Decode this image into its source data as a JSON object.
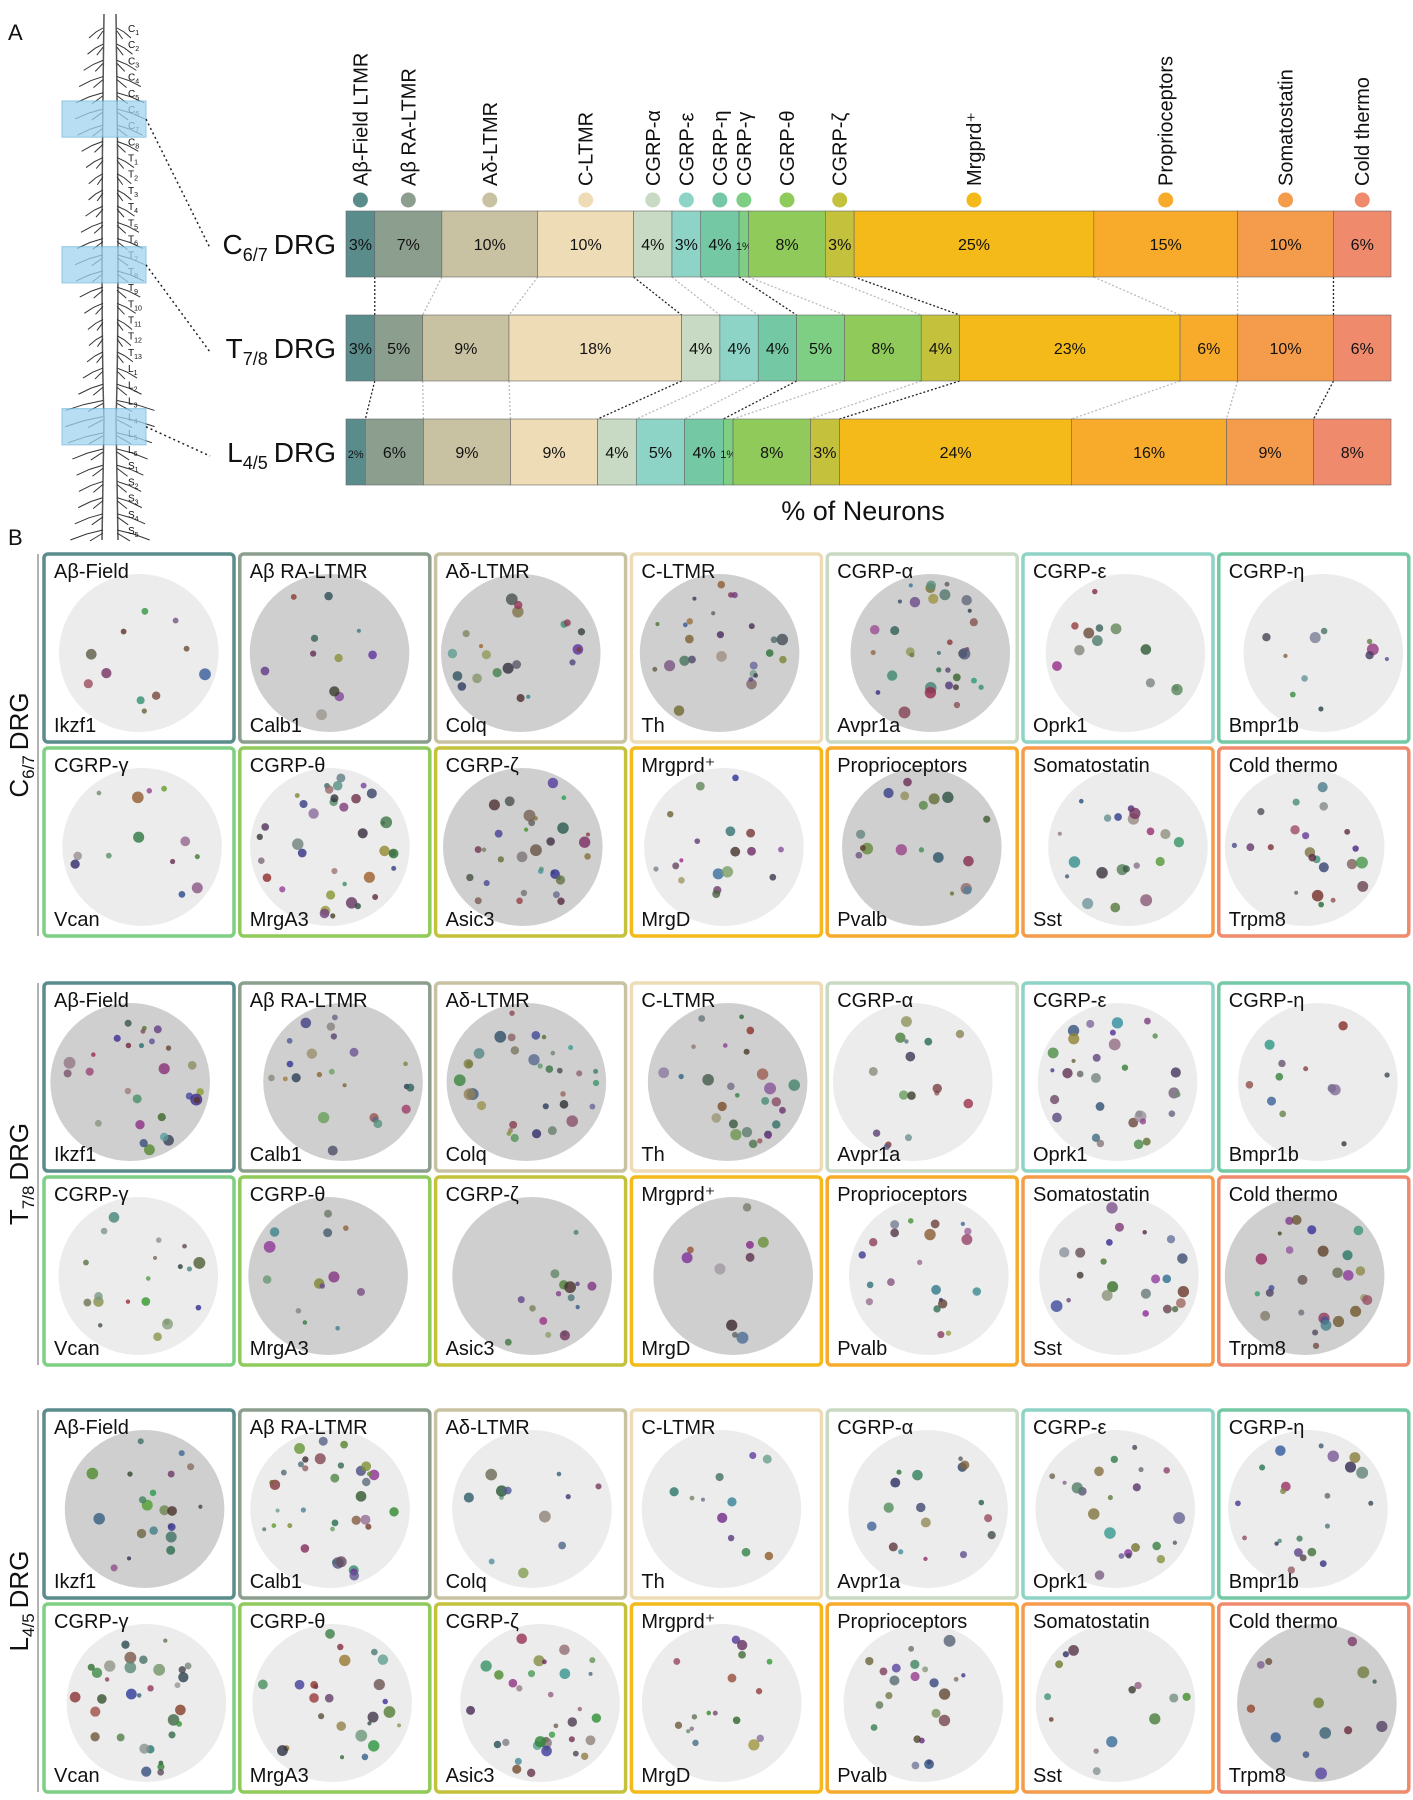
{
  "panel_labels": [
    "A",
    "B"
  ],
  "chart_data": {
    "type": "bar",
    "orientation": "horizontal",
    "stacked": true,
    "xlabel": "% of Neurons",
    "categories": [
      {
        "main": "C",
        "sub": "6/7",
        "rest": "DRG"
      },
      {
        "main": "T",
        "sub": "7/8",
        "rest": "DRG"
      },
      {
        "main": "L",
        "sub": "4/5",
        "rest": "DRG"
      }
    ],
    "series": [
      {
        "name": "Aβ-Field LTMR",
        "color": "#5b8c8c",
        "values": [
          3,
          3,
          2
        ],
        "value_labels": [
          "3%",
          "3%",
          "2%"
        ]
      },
      {
        "name": "Aβ RA-LTMR",
        "color": "#8c9e8e",
        "values": [
          7,
          5,
          6
        ],
        "value_labels": [
          "7%",
          "5%",
          "6%"
        ]
      },
      {
        "name": "Aδ-LTMR",
        "color": "#c9c2a2",
        "values": [
          10,
          9,
          9
        ],
        "value_labels": [
          "10%",
          "9%",
          "9%"
        ]
      },
      {
        "name": "C-LTMR",
        "color": "#eedcb6",
        "values": [
          10,
          18,
          9
        ],
        "value_labels": [
          "10%",
          "18%",
          "9%"
        ]
      },
      {
        "name": "CGRP-α",
        "color": "#c8dac4",
        "values": [
          4,
          4,
          4
        ],
        "value_labels": [
          "4%",
          "4%",
          "4%"
        ]
      },
      {
        "name": "CGRP-ε",
        "color": "#8ed4c6",
        "values": [
          3,
          4,
          5
        ],
        "value_labels": [
          "3%",
          "4%",
          "5%"
        ]
      },
      {
        "name": "CGRP-η",
        "color": "#74c9a4",
        "values": [
          4,
          4,
          4
        ],
        "value_labels": [
          "4%",
          "4%",
          "4%"
        ]
      },
      {
        "name": "CGRP-γ",
        "color": "#7ecf84",
        "values": [
          1,
          5,
          1
        ],
        "value_labels": [
          "1%",
          "5%",
          "1%"
        ]
      },
      {
        "name": "CGRP-θ",
        "color": "#8fca5a",
        "values": [
          8,
          8,
          8
        ],
        "value_labels": [
          "8%",
          "8%",
          "8%"
        ]
      },
      {
        "name": "CGRP-ζ",
        "color": "#c4c23c",
        "values": [
          3,
          4,
          3
        ],
        "value_labels": [
          "3%",
          "4%",
          "3%"
        ]
      },
      {
        "name": "Mrgprd⁺",
        "color": "#f3ba1a",
        "values": [
          25,
          23,
          24
        ],
        "value_labels": [
          "25%",
          "23%",
          "24%"
        ]
      },
      {
        "name": "Proprioceptors",
        "color": "#f8aa2a",
        "values": [
          15,
          6,
          16
        ],
        "value_labels": [
          "15%",
          "6%",
          "16%"
        ]
      },
      {
        "name": "Somatostatin",
        "color": "#f59c4c",
        "values": [
          10,
          10,
          9
        ],
        "value_labels": [
          "10%",
          "10%",
          "9%"
        ]
      },
      {
        "name": "Cold thermo",
        "color": "#f08a6c",
        "values": [
          6,
          6,
          8
        ],
        "value_labels": [
          "6%",
          "6%",
          "8%"
        ]
      }
    ]
  },
  "spine": {
    "labels": [
      {
        "letter": "C",
        "sub": "1"
      },
      {
        "letter": "C",
        "sub": "2"
      },
      {
        "letter": "C",
        "sub": "3"
      },
      {
        "letter": "C",
        "sub": "4"
      },
      {
        "letter": "C",
        "sub": "5"
      },
      {
        "letter": "C",
        "sub": "6"
      },
      {
        "letter": "C",
        "sub": "7"
      },
      {
        "letter": "C",
        "sub": "8"
      },
      {
        "letter": "T",
        "sub": "1"
      },
      {
        "letter": "T",
        "sub": "2"
      },
      {
        "letter": "T",
        "sub": "3"
      },
      {
        "letter": "T",
        "sub": "4"
      },
      {
        "letter": "T",
        "sub": "5"
      },
      {
        "letter": "T",
        "sub": "6"
      },
      {
        "letter": "T",
        "sub": "7"
      },
      {
        "letter": "T",
        "sub": "8"
      },
      {
        "letter": "T",
        "sub": "9"
      },
      {
        "letter": "T",
        "sub": "10"
      },
      {
        "letter": "T",
        "sub": "11"
      },
      {
        "letter": "T",
        "sub": "12"
      },
      {
        "letter": "T",
        "sub": "13"
      },
      {
        "letter": "L",
        "sub": "1"
      },
      {
        "letter": "L",
        "sub": "2"
      },
      {
        "letter": "L",
        "sub": "3"
      },
      {
        "letter": "L",
        "sub": "4"
      },
      {
        "letter": "L",
        "sub": "5"
      },
      {
        "letter": "L",
        "sub": "6"
      },
      {
        "letter": "S",
        "sub": "1"
      },
      {
        "letter": "S",
        "sub": "2"
      },
      {
        "letter": "S",
        "sub": "3"
      },
      {
        "letter": "S",
        "sub": "4"
      },
      {
        "letter": "S",
        "sub": "5"
      }
    ]
  },
  "micrographs": {
    "panels": [
      {
        "title": "Aβ-Field",
        "gene": "Ikzf1"
      },
      {
        "title": "Aβ RA-LTMR",
        "gene": "Calb1"
      },
      {
        "title": "Aδ-LTMR",
        "gene": "Colq"
      },
      {
        "title": "C-LTMR",
        "gene": "Th"
      },
      {
        "title": "CGRP-α",
        "gene": "Avpr1a"
      },
      {
        "title": "CGRP-ε",
        "gene": "Oprk1"
      },
      {
        "title": "CGRP-η",
        "gene": "Bmpr1b"
      },
      {
        "title": "CGRP-γ",
        "gene": "Vcan"
      },
      {
        "title": "CGRP-θ",
        "gene": "MrgA3"
      },
      {
        "title": "CGRP-ζ",
        "gene": "Asic3"
      },
      {
        "title": "Mrgprd⁺",
        "gene": "MrgD"
      },
      {
        "title": "Proprioceptors",
        "gene": "Pvalb"
      },
      {
        "title": "Somatostatin",
        "gene": "Sst"
      },
      {
        "title": "Cold thermo",
        "gene": "Trpm8"
      }
    ]
  }
}
